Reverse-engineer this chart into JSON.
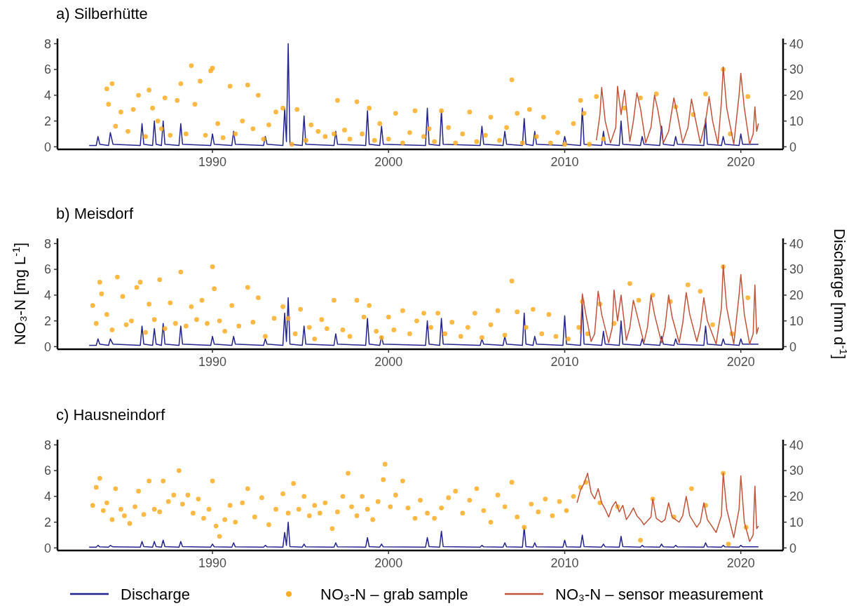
{
  "chart_data": [
    {
      "type": "line",
      "title": "a) Silberhütte",
      "xlim": [
        1981.2,
        2022.4
      ],
      "xticks": [
        1990,
        2000,
        2010,
        2020
      ],
      "ylim": [
        -0.2,
        8.4
      ],
      "yticks": [
        0,
        2,
        4,
        6,
        8
      ],
      "y2lim": [
        -1,
        42
      ],
      "y2ticks": [
        0,
        10,
        20,
        30,
        40
      ],
      "series": [
        {
          "type": "line",
          "axis": "y2",
          "color": "#23238e",
          "x": [
            1983.0,
            1983.4,
            1983.5,
            1983.6,
            1984.1,
            1984.2,
            1984.35,
            1985.9,
            1986.0,
            1986.1,
            1986.6,
            1986.7,
            1986.8,
            1987.1,
            1987.2,
            1987.3,
            1988.1,
            1988.2,
            1988.3,
            1989.9,
            1990.0,
            1990.1,
            1991.1,
            1991.2,
            1991.3,
            1992.9,
            1993.0,
            1993.1,
            1994.0,
            1994.1,
            1994.2,
            1994.3,
            1994.4,
            1995.1,
            1995.2,
            1995.3,
            1996.9,
            1997.0,
            1997.1,
            1998.7,
            1998.8,
            1998.9,
            1999.5,
            1999.6,
            1999.7,
            2002.1,
            2002.2,
            2002.3,
            2002.9,
            2003.0,
            2003.1,
            2005.2,
            2005.3,
            2005.4,
            2006.5,
            2006.6,
            2006.7,
            2007.6,
            2007.7,
            2007.8,
            2008.2,
            2008.3,
            2008.4,
            2009.9,
            2010.0,
            2010.1,
            2010.9,
            2011.0,
            2011.1,
            2012.1,
            2012.2,
            2012.3,
            2013.1,
            2013.2,
            2013.3,
            2014.3,
            2014.4,
            2014.5,
            2015.4,
            2015.5,
            2015.6,
            2016.2,
            2016.3,
            2016.4,
            2017.9,
            2018.0,
            2018.1,
            2018.9,
            2019.0,
            2019.1,
            2019.9,
            2020.0,
            2020.1,
            2021.0
          ],
          "values": [
            0.5,
            0.5,
            4,
            1,
            0.5,
            5.5,
            1,
            0.5,
            9,
            1,
            0.5,
            10,
            1,
            0.5,
            10,
            1,
            0.5,
            9,
            1,
            0.5,
            5,
            1,
            0.5,
            6,
            1,
            0.5,
            4,
            1,
            0.5,
            15,
            2,
            40,
            1,
            0.5,
            12,
            1,
            0.5,
            6,
            1,
            0.5,
            14,
            1,
            0.5,
            8,
            1,
            0.5,
            15,
            1,
            0.5,
            14,
            1,
            0.5,
            8,
            1,
            0.5,
            6,
            1,
            0.5,
            11,
            1,
            0.5,
            6,
            1,
            0.5,
            4,
            1,
            0.5,
            15,
            1,
            0.5,
            6,
            1,
            0.5,
            10,
            1,
            0.5,
            4,
            1,
            0.5,
            8,
            1,
            0.5,
            4,
            1,
            0.5,
            11,
            1,
            0.5,
            4,
            1,
            0.5,
            5,
            1,
            1
          ]
        },
        {
          "type": "scatter",
          "marker": "circle",
          "color": "#fbad24",
          "x": [
            1984.0,
            1984.1,
            1984.3,
            1984.5,
            1984.8,
            1985.2,
            1985.5,
            1985.8,
            1986.2,
            1986.4,
            1986.6,
            1986.9,
            1987.1,
            1987.3,
            1987.6,
            1988.0,
            1988.2,
            1988.5,
            1988.8,
            1989.0,
            1989.3,
            1989.6,
            1989.9,
            1990.0,
            1990.3,
            1990.6,
            1991.0,
            1991.3,
            1991.7,
            1992.0,
            1992.3,
            1992.6,
            1992.9,
            1993.2,
            1993.6,
            1994.0,
            1994.5,
            1994.8,
            1995.3,
            1995.6,
            1996.0,
            1996.4,
            1996.9,
            1997.1,
            1997.5,
            1997.8,
            1998.2,
            1998.5,
            1998.9,
            1999.2,
            1999.5,
            2000.0,
            2000.4,
            2000.8,
            2001.2,
            2001.5,
            2002.0,
            2002.3,
            2002.6,
            2003.0,
            2003.4,
            2003.8,
            2004.2,
            2004.6,
            2005.0,
            2005.5,
            2005.8,
            2006.3,
            2006.7,
            2007.0,
            2007.3,
            2007.6,
            2008.0,
            2008.4,
            2008.8,
            2009.2,
            2009.6,
            2010.0,
            2010.5,
            2010.9,
            2011.1,
            2011.4,
            2011.8,
            2012.2,
            2013.4,
            2014.3,
            2015.2,
            2016.3,
            2017.3,
            2018.0,
            2019.0,
            2019.4,
            2020.4
          ],
          "values": [
            4.5,
            3.3,
            4.9,
            1.6,
            2.7,
            1.2,
            2.9,
            4.0,
            0.8,
            4.4,
            3.0,
            2.0,
            1.4,
            3.8,
            0.9,
            3.6,
            4.9,
            1.0,
            6.3,
            3.3,
            5.1,
            0.9,
            5.9,
            6.1,
            1.8,
            0.7,
            4.7,
            1.0,
            2.0,
            4.8,
            1.4,
            4.0,
            0.6,
            1.7,
            2.7,
            3.0,
            0.2,
            2.9,
            0.5,
            1.7,
            1.2,
            0.8,
            1.0,
            3.6,
            1.3,
            0.6,
            3.5,
            1.0,
            3.0,
            0.5,
            1.8,
            0.6,
            2.6,
            0.3,
            1.1,
            2.8,
            0.8,
            1.4,
            0.4,
            2.8,
            1.5,
            0.3,
            1.0,
            2.7,
            0.4,
            0.9,
            2.3,
            0.5,
            1.5,
            5.2,
            2.6,
            0.3,
            2.9,
            0.8,
            2.3,
            0.3,
            1.1,
            0.2,
            1.8,
            3.6,
            2.6,
            0.2,
            3.9,
            0.6,
            3.0,
            3.8,
            4.1,
            3.1,
            2.5,
            4.1,
            6.0,
            1.0,
            3.9
          ]
        },
        {
          "type": "line",
          "color": "#c0533a",
          "x": [
            2011.8,
            2012.0,
            2012.1,
            2012.3,
            2012.6,
            2012.9,
            2013.0,
            2013.2,
            2013.4,
            2013.7,
            2013.9,
            2014.1,
            2014.3,
            2014.6,
            2014.9,
            2015.1,
            2015.3,
            2015.6,
            2015.9,
            2016.2,
            2016.4,
            2016.7,
            2017.0,
            2017.2,
            2017.4,
            2017.7,
            2018.0,
            2018.2,
            2018.4,
            2018.7,
            2018.9,
            2019.0,
            2019.2,
            2019.6,
            2019.9,
            2020.0,
            2020.2,
            2020.5,
            2020.7,
            2020.8,
            2020.9,
            2021.0
          ],
          "values": [
            0.5,
            2.5,
            4.6,
            2.0,
            0.3,
            1.5,
            4.7,
            2.5,
            4.4,
            0.4,
            2.0,
            4.2,
            3.0,
            0.3,
            1.5,
            4.0,
            2.8,
            0.3,
            1.2,
            3.8,
            2.5,
            0.3,
            1.5,
            3.7,
            2.3,
            0.3,
            2.0,
            3.9,
            2.0,
            0.2,
            3.5,
            6.2,
            3.0,
            0.2,
            4.0,
            5.7,
            3.0,
            0.2,
            1.0,
            3.1,
            1.2,
            1.8
          ]
        }
      ]
    },
    {
      "type": "line",
      "title": "b) Meisdorf",
      "ylabel": "NO₃-N [mg L$^{-1}$]",
      "y2label": "Discharge [mm d$^{-1}$]",
      "xlim": [
        1981.2,
        2022.4
      ],
      "xticks": [
        1990,
        2000,
        2010,
        2020
      ],
      "ylim": [
        -0.2,
        8.4
      ],
      "yticks": [
        0,
        2,
        4,
        6,
        8
      ],
      "y2lim": [
        -1,
        42
      ],
      "y2ticks": [
        0,
        10,
        20,
        30,
        40
      ],
      "series": [
        {
          "type": "line",
          "axis": "y2",
          "color": "#23238e",
          "x": [
            1983.0,
            1983.4,
            1983.5,
            1983.6,
            1984.1,
            1984.2,
            1984.35,
            1985.9,
            1986.0,
            1986.1,
            1986.6,
            1986.7,
            1986.8,
            1987.1,
            1987.2,
            1987.3,
            1988.1,
            1988.2,
            1988.3,
            1989.9,
            1990.0,
            1990.1,
            1991.1,
            1991.2,
            1991.3,
            1992.9,
            1993.0,
            1993.1,
            1994.0,
            1994.1,
            1994.2,
            1994.3,
            1994.4,
            1995.1,
            1995.2,
            1995.3,
            1996.9,
            1997.0,
            1997.1,
            1998.7,
            1998.8,
            1998.9,
            1999.5,
            1999.6,
            1999.7,
            2002.1,
            2002.2,
            2002.3,
            2002.9,
            2003.0,
            2003.1,
            2005.2,
            2005.3,
            2005.4,
            2006.5,
            2006.6,
            2006.7,
            2007.6,
            2007.7,
            2007.8,
            2008.2,
            2008.3,
            2008.4,
            2009.9,
            2010.0,
            2010.1,
            2010.9,
            2011.0,
            2011.1,
            2012.1,
            2012.2,
            2012.3,
            2013.1,
            2013.2,
            2013.3,
            2014.3,
            2014.4,
            2014.5,
            2015.4,
            2015.5,
            2015.6,
            2016.2,
            2016.3,
            2016.4,
            2017.9,
            2018.0,
            2018.1,
            2018.9,
            2019.0,
            2019.1,
            2019.9,
            2020.0,
            2020.1,
            2021.0
          ],
          "values": [
            0.5,
            0.5,
            3,
            1,
            0.5,
            3,
            1,
            0.5,
            8,
            1,
            0.5,
            7,
            1,
            0.5,
            9,
            1,
            0.5,
            8,
            1,
            0.5,
            4,
            1,
            0.5,
            4,
            1,
            0.5,
            3,
            1,
            0.5,
            13,
            2,
            19,
            1,
            0.5,
            8,
            1,
            0.5,
            5,
            1,
            0.5,
            11,
            1,
            0.5,
            4,
            1,
            0.5,
            10,
            1,
            0.5,
            11,
            1,
            0.5,
            3,
            1,
            0.5,
            4,
            1,
            0.5,
            13,
            1,
            0.5,
            4,
            1,
            0.5,
            12,
            1,
            0.5,
            17,
            1,
            0.5,
            6,
            1,
            0.5,
            10,
            1,
            0.5,
            3,
            1,
            0.5,
            4,
            1,
            0.5,
            3,
            1,
            0.5,
            8,
            1,
            0.5,
            3,
            1,
            0.5,
            3,
            1,
            1
          ]
        },
        {
          "type": "scatter",
          "marker": "circle",
          "color": "#fbad24",
          "x": [
            1983.2,
            1983.4,
            1983.6,
            1983.7,
            1984.0,
            1984.3,
            1984.6,
            1984.9,
            1985.1,
            1985.4,
            1985.7,
            1985.9,
            1986.2,
            1986.4,
            1986.7,
            1987.0,
            1987.3,
            1987.6,
            1987.9,
            1988.2,
            1988.5,
            1988.8,
            1989.1,
            1989.4,
            1989.7,
            1990.0,
            1990.1,
            1990.4,
            1990.7,
            1991.1,
            1991.5,
            1992.0,
            1992.3,
            1992.6,
            1993.0,
            1993.5,
            1994.0,
            1994.3,
            1994.7,
            1995.0,
            1995.5,
            1995.8,
            1996.2,
            1996.5,
            1996.9,
            1997.4,
            1997.8,
            1998.2,
            1998.6,
            1998.9,
            1999.3,
            1999.6,
            2000.0,
            2000.3,
            2000.8,
            2001.2,
            2001.6,
            2002.0,
            2002.4,
            2002.8,
            2003.2,
            2003.6,
            2004.1,
            2004.5,
            2004.9,
            2005.3,
            2005.8,
            2006.2,
            2006.6,
            2007.0,
            2007.3,
            2007.8,
            2008.2,
            2008.7,
            2009.1,
            2009.5,
            2010.2,
            2010.8,
            2011.0,
            2011.3,
            2012.0,
            2012.8,
            2013.7,
            2014.2,
            2015.0,
            2016.0,
            2017.0,
            2017.7,
            2018.4,
            2019.0,
            2019.5,
            2020.4
          ],
          "values": [
            3.2,
            1.8,
            5.0,
            4.1,
            2.5,
            1.3,
            5.4,
            3.9,
            1.7,
            2.0,
            4.6,
            5.0,
            1.1,
            3.3,
            2.1,
            5.2,
            1.4,
            3.4,
            1.8,
            5.8,
            1.6,
            3.1,
            2.1,
            3.6,
            1.8,
            6.2,
            4.5,
            2.0,
            1.2,
            3.2,
            1.6,
            4.6,
            1.9,
            3.8,
            0.8,
            2.2,
            3.1,
            2.2,
            1.0,
            2.9,
            1.5,
            0.6,
            2.1,
            1.4,
            3.6,
            1.3,
            0.8,
            3.6,
            2.3,
            3.2,
            1.2,
            0.7,
            2.3,
            1.3,
            2.8,
            1.0,
            2.0,
            2.6,
            1.5,
            2.6,
            1.0,
            1.9,
            0.8,
            1.5,
            2.6,
            0.7,
            1.7,
            2.8,
            0.9,
            5.1,
            2.7,
            1.5,
            2.9,
            1.0,
            2.5,
            0.8,
            0.6,
            1.5,
            3.5,
            1.0,
            3.3,
            1.8,
            4.9,
            3.6,
            4.0,
            3.5,
            4.8,
            4.3,
            1.7,
            6.2,
            1.0,
            3.8
          ]
        },
        {
          "type": "line",
          "color": "#c0533a",
          "x": [
            2010.9,
            2011.0,
            2011.2,
            2011.5,
            2011.7,
            2011.9,
            2012.1,
            2012.5,
            2012.7,
            2012.8,
            2013.0,
            2013.2,
            2013.5,
            2013.7,
            2013.9,
            2014.1,
            2014.5,
            2014.7,
            2014.9,
            2015.1,
            2015.5,
            2015.7,
            2015.9,
            2016.1,
            2016.5,
            2016.7,
            2016.9,
            2017.1,
            2017.5,
            2017.7,
            2017.9,
            2018.1,
            2018.6,
            2018.9,
            2019.0,
            2019.2,
            2019.6,
            2019.9,
            2020.0,
            2020.2,
            2020.5,
            2020.7,
            2020.8,
            2020.9,
            2021.0
          ],
          "values": [
            1.0,
            4.1,
            2.5,
            0.4,
            1.0,
            4.3,
            2.5,
            0.3,
            1.5,
            4.4,
            2.0,
            4.0,
            0.5,
            1.5,
            3.6,
            2.5,
            0.3,
            1.5,
            4.0,
            2.5,
            0.3,
            1.5,
            4.0,
            2.3,
            0.3,
            1.8,
            4.2,
            2.5,
            0.4,
            1.5,
            3.8,
            2.0,
            0.2,
            3.0,
            6.3,
            3.0,
            0.2,
            4.0,
            5.6,
            2.5,
            0.2,
            1.0,
            4.8,
            1.0,
            1.5
          ]
        }
      ]
    },
    {
      "type": "line",
      "title": "c) Hausneindorf",
      "legend": "bottom",
      "xlim": [
        1981.2,
        2022.4
      ],
      "xticks": [
        1990,
        2000,
        2010,
        2020
      ],
      "ylim": [
        -0.2,
        8.4
      ],
      "yticks": [
        0,
        2,
        4,
        6,
        8
      ],
      "y2lim": [
        -1,
        42
      ],
      "y2ticks": [
        0,
        10,
        20,
        30,
        40
      ],
      "series": [
        {
          "type": "line",
          "name": "Discharge",
          "axis": "y2",
          "color": "#23238e",
          "x": [
            1983.0,
            1983.4,
            1983.5,
            1983.6,
            1984.1,
            1984.2,
            1984.35,
            1985.9,
            1986.0,
            1986.1,
            1986.6,
            1986.7,
            1986.8,
            1987.1,
            1987.2,
            1987.3,
            1988.1,
            1988.2,
            1988.3,
            1989.9,
            1990.0,
            1990.1,
            1991.1,
            1991.2,
            1991.3,
            1992.9,
            1993.0,
            1993.1,
            1994.0,
            1994.1,
            1994.2,
            1994.3,
            1994.4,
            1995.1,
            1995.2,
            1995.3,
            1996.9,
            1997.0,
            1997.1,
            1998.7,
            1998.8,
            1998.9,
            1999.5,
            1999.6,
            1999.7,
            2002.1,
            2002.2,
            2002.3,
            2002.9,
            2003.0,
            2003.1,
            2005.2,
            2005.3,
            2005.4,
            2006.5,
            2006.6,
            2006.7,
            2007.6,
            2007.7,
            2007.8,
            2008.2,
            2008.3,
            2008.4,
            2009.9,
            2010.0,
            2010.1,
            2010.9,
            2011.0,
            2011.1,
            2012.1,
            2012.2,
            2012.3,
            2013.1,
            2013.2,
            2013.3,
            2014.3,
            2014.4,
            2014.5,
            2015.4,
            2015.5,
            2015.6,
            2016.2,
            2016.3,
            2016.4,
            2017.9,
            2018.0,
            2018.1,
            2018.9,
            2019.0,
            2019.1,
            2019.9,
            2020.0,
            2020.1,
            2021.0
          ],
          "values": [
            0.3,
            0.3,
            1,
            0.4,
            0.3,
            1,
            0.4,
            0.3,
            2.5,
            0.5,
            0.3,
            2.5,
            0.5,
            0.3,
            3,
            0.5,
            0.3,
            2.5,
            0.5,
            0.3,
            1.5,
            0.4,
            0.3,
            2,
            0.4,
            0.3,
            1,
            0.4,
            0.3,
            6,
            1,
            10,
            0.5,
            0.3,
            1.5,
            0.4,
            0.3,
            2,
            0.4,
            0.3,
            4,
            0.5,
            0.3,
            1.5,
            0.4,
            0.3,
            4,
            0.5,
            0.3,
            6.5,
            0.5,
            0.3,
            1,
            0.4,
            0.3,
            2,
            0.4,
            0.3,
            8,
            0.5,
            0.3,
            2,
            0.4,
            0.3,
            3,
            0.4,
            0.3,
            5,
            0.5,
            0.3,
            1.5,
            0.4,
            0.3,
            4.5,
            0.5,
            0.3,
            1,
            0.4,
            0.3,
            1.5,
            0.4,
            0.3,
            1,
            0.4,
            0.3,
            2,
            0.4,
            0.3,
            1,
            0.4,
            0.3,
            1,
            0.4,
            0.4
          ]
        },
        {
          "type": "scatter",
          "name": "NO₃-N – grab sample",
          "marker": "circle",
          "color": "#fbad24",
          "x": [
            1983.2,
            1983.4,
            1983.6,
            1983.8,
            1984.0,
            1984.3,
            1984.5,
            1984.8,
            1985.0,
            1985.3,
            1985.6,
            1985.8,
            1986.1,
            1986.4,
            1986.7,
            1987.0,
            1987.2,
            1987.5,
            1987.8,
            1988.1,
            1988.3,
            1988.6,
            1988.9,
            1989.2,
            1989.5,
            1989.8,
            1990.0,
            1990.2,
            1990.4,
            1990.7,
            1991.0,
            1991.3,
            1991.7,
            1992.0,
            1992.4,
            1992.8,
            1993.2,
            1993.6,
            1994.0,
            1994.3,
            1994.6,
            1994.9,
            1995.2,
            1995.5,
            1995.8,
            1996.1,
            1996.4,
            1996.8,
            1997.1,
            1997.4,
            1997.7,
            1997.9,
            1998.2,
            1998.5,
            1998.8,
            1999.1,
            1999.4,
            1999.7,
            1999.8,
            2000.1,
            2000.4,
            2000.8,
            2001.1,
            2001.5,
            2001.8,
            2002.2,
            2002.6,
            2003.0,
            2003.4,
            2003.8,
            2004.2,
            2004.6,
            2005.0,
            2005.4,
            2005.8,
            2006.2,
            2006.6,
            2007.0,
            2007.3,
            2007.7,
            2008.1,
            2008.5,
            2008.9,
            2009.3,
            2009.7,
            2010.1,
            2010.5,
            2010.9,
            2011.2,
            2012.0,
            2013.0,
            2014.3,
            2015.0,
            2016.2,
            2017.2,
            2018.0,
            2019.0,
            2019.3,
            2020.3
          ],
          "values": [
            3.3,
            4.7,
            5.4,
            2.9,
            3.5,
            2.2,
            4.6,
            3.0,
            2.5,
            1.9,
            3.2,
            4.4,
            2.6,
            5.2,
            3.0,
            2.8,
            5.2,
            3.6,
            4.1,
            6.0,
            3.4,
            4.1,
            2.7,
            3.8,
            2.3,
            3.0,
            5.2,
            1.7,
            0.9,
            2.2,
            3.3,
            2.0,
            3.5,
            4.6,
            2.4,
            3.9,
            1.8,
            3.0,
            4.2,
            2.7,
            5.0,
            3.0,
            4.0,
            2.5,
            3.3,
            2.7,
            3.5,
            1.5,
            2.8,
            4.0,
            5.8,
            3.2,
            2.5,
            4.0,
            3.0,
            2.2,
            3.6,
            5.3,
            6.5,
            3.2,
            4.1,
            5.2,
            3.1,
            2.3,
            3.7,
            2.7,
            2.3,
            3.1,
            3.9,
            4.4,
            2.7,
            3.7,
            4.6,
            2.9,
            2.0,
            4.1,
            3.2,
            5.1,
            2.4,
            1.6,
            3.4,
            2.8,
            3.8,
            2.5,
            3.6,
            2.9,
            4.0,
            4.7,
            5.1,
            3.5,
            3.2,
            0.6,
            3.8,
            2.4,
            4.6,
            3.3,
            5.8,
            0.3,
            1.6
          ]
        },
        {
          "type": "line",
          "name": "NO₃-N – sensor measurement",
          "color": "#c0533a",
          "x": [
            2010.7,
            2010.9,
            2011.1,
            2011.3,
            2011.5,
            2011.7,
            2011.9,
            2012.1,
            2012.3,
            2012.5,
            2012.7,
            2012.9,
            2013.1,
            2013.3,
            2013.5,
            2013.7,
            2013.9,
            2014.1,
            2014.3,
            2014.5,
            2014.7,
            2014.9,
            2015.0,
            2015.2,
            2015.5,
            2015.7,
            2015.9,
            2016.1,
            2016.5,
            2016.7,
            2016.9,
            2017.1,
            2017.5,
            2017.7,
            2017.9,
            2018.1,
            2018.6,
            2018.9,
            2019.0,
            2019.2,
            2019.6,
            2019.9,
            2020.0,
            2020.2,
            2020.5,
            2020.7,
            2020.8,
            2020.9,
            2021.0
          ],
          "values": [
            3.5,
            4.5,
            5.0,
            5.8,
            4.3,
            3.8,
            4.6,
            3.5,
            3.0,
            2.4,
            3.2,
            3.6,
            2.8,
            3.3,
            2.2,
            2.6,
            3.1,
            2.5,
            2.2,
            1.8,
            2.1,
            2.4,
            3.8,
            2.3,
            2.0,
            2.2,
            3.5,
            2.4,
            2.0,
            2.5,
            4.0,
            2.5,
            1.6,
            2.0,
            3.5,
            2.2,
            1.2,
            2.5,
            5.8,
            3.0,
            0.8,
            3.0,
            5.6,
            2.0,
            0.5,
            1.0,
            4.8,
            1.5,
            1.7
          ]
        }
      ]
    }
  ]
}
